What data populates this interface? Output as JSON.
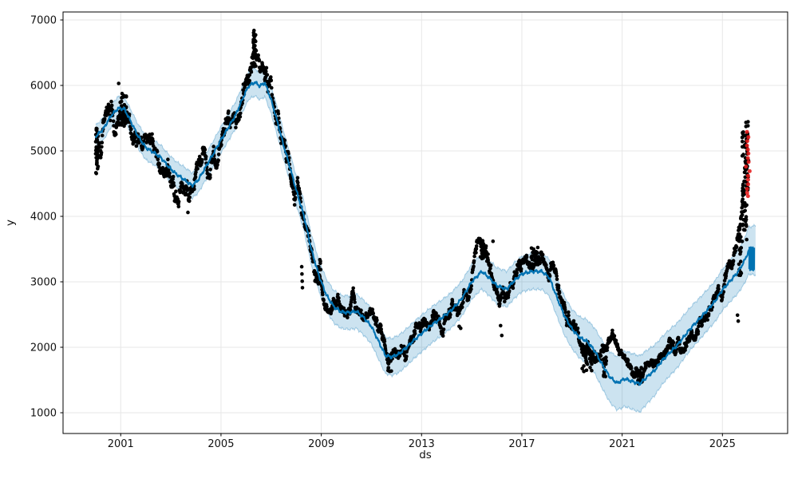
{
  "figure": {
    "background": "#ffffff",
    "description": "Time-series forecast plot (Prophet style): black actual observations, blue forecast line with light-blue uncertainty interval, red anomaly points near the end, short forecast tail beyond last observation."
  },
  "chart_data": {
    "type": "scatter",
    "subtype": "time-series forecast with uncertainty band and anomalies",
    "title": "",
    "xlabel": "ds",
    "ylabel": "y",
    "x_domain": [
      1998.7,
      2027.6
    ],
    "y_domain": [
      683,
      7122
    ],
    "x_ticks": [
      2001,
      2005,
      2009,
      2013,
      2017,
      2021,
      2025
    ],
    "y_ticks": [
      1000,
      2000,
      3000,
      4000,
      5000,
      6000,
      7000
    ],
    "grid": true,
    "legend": "none",
    "colors": {
      "actuals": "#000000",
      "forecast_line": "#0072B2",
      "uncertainty_band": "rgba(0,114,178,0.2)",
      "band_edge": "rgba(0,114,178,0.30)",
      "anomalies": "rgba(230,26,26,0.88)",
      "gridline": "#e7e7e7",
      "spine": "#000000"
    },
    "forecast": {
      "name": "yhat",
      "x": [
        2000.0,
        2000.3,
        2000.6,
        2000.9,
        2001.15,
        2001.4,
        2001.7,
        2002.0,
        2002.3,
        2002.6,
        2002.9,
        2003.2,
        2003.5,
        2003.85,
        2004.1,
        2004.4,
        2004.7,
        2005.0,
        2005.3,
        2005.6,
        2005.9,
        2006.1,
        2006.35,
        2006.55,
        2006.75,
        2007.0,
        2007.25,
        2007.5,
        2007.75,
        2008.0,
        2008.3,
        2008.6,
        2008.9,
        2009.2,
        2009.5,
        2009.8,
        2010.1,
        2010.4,
        2010.7,
        2011.0,
        2011.3,
        2011.55,
        2011.8,
        2012.1,
        2012.4,
        2012.7,
        2013.0,
        2013.4,
        2013.8,
        2014.2,
        2014.6,
        2015.0,
        2015.4,
        2015.7,
        2016.0,
        2016.4,
        2016.7,
        2017.0,
        2017.4,
        2017.8,
        2018.1,
        2018.4,
        2018.7,
        2019.0,
        2019.3,
        2019.6,
        2019.9,
        2020.2,
        2020.5,
        2020.8,
        2021.1,
        2021.4,
        2021.7,
        2022.0,
        2022.3,
        2022.6,
        2022.9,
        2023.2,
        2023.5,
        2023.8,
        2024.1,
        2024.4,
        2024.7,
        2025.0,
        2025.3,
        2025.6,
        2025.85,
        2026.06
      ],
      "y": [
        5220,
        5330,
        5530,
        5650,
        5640,
        5450,
        5220,
        5050,
        4980,
        4900,
        4760,
        4650,
        4570,
        4470,
        4560,
        4760,
        4960,
        5170,
        5360,
        5560,
        5830,
        5990,
        6050,
        5990,
        6040,
        5780,
        5440,
        5080,
        4750,
        4400,
        4020,
        3500,
        3100,
        2800,
        2620,
        2540,
        2530,
        2550,
        2450,
        2320,
        2080,
        1880,
        1850,
        1900,
        2000,
        2110,
        2210,
        2340,
        2450,
        2570,
        2740,
        3000,
        3160,
        3060,
        2940,
        2890,
        3020,
        3120,
        3160,
        3160,
        3060,
        2760,
        2480,
        2280,
        2150,
        2090,
        1950,
        1740,
        1550,
        1450,
        1520,
        1480,
        1440,
        1550,
        1650,
        1800,
        1920,
        2030,
        2180,
        2320,
        2440,
        2570,
        2700,
        2880,
        3010,
        3140,
        3300,
        3480
      ]
    },
    "uncertainty": {
      "x": [
        2000,
        2002,
        2004,
        2006,
        2008,
        2009,
        2010,
        2011,
        2012,
        2013,
        2014,
        2015,
        2016,
        2017,
        2018,
        2019,
        2020,
        2021,
        2021.7,
        2022.5,
        2023.5,
        2024.5,
        2025.5,
        2026.35
      ],
      "half_width": [
        170,
        185,
        195,
        205,
        220,
        240,
        255,
        270,
        285,
        280,
        270,
        265,
        275,
        270,
        280,
        300,
        350,
        420,
        430,
        370,
        330,
        310,
        320,
        380
      ],
      "x_end": 2026.32
    },
    "forecast_tail_blob": {
      "x_start": 2026.07,
      "x_end": 2026.27,
      "y_min": 3170,
      "y_max": 3530
    },
    "actuals": {
      "name": "y",
      "x_start": 2000.0,
      "x_end": 2026.05,
      "keypoints_x": [
        2000.0,
        2000.15,
        2000.4,
        2000.65,
        2000.9,
        2001.1,
        2001.35,
        2001.6,
        2001.85,
        2002.1,
        2002.35,
        2002.6,
        2002.85,
        2003.1,
        2003.4,
        2003.65,
        2003.9,
        2004.15,
        2004.35,
        2004.6,
        2004.85,
        2005.1,
        2005.35,
        2005.6,
        2005.85,
        2006.1,
        2006.3,
        2006.45,
        2006.65,
        2006.85,
        2007.05,
        2007.3,
        2007.55,
        2007.8,
        2008.05,
        2008.3,
        2008.55,
        2008.8,
        2009.0,
        2009.25,
        2009.5,
        2009.75,
        2010.0,
        2010.25,
        2010.5,
        2010.75,
        2011.0,
        2011.25,
        2011.5,
        2011.75,
        2012.0,
        2012.25,
        2012.5,
        2012.75,
        2013.0,
        2013.25,
        2013.5,
        2013.75,
        2014.0,
        2014.25,
        2014.5,
        2014.75,
        2015.0,
        2015.25,
        2015.45,
        2015.65,
        2015.9,
        2016.15,
        2016.4,
        2016.65,
        2016.9,
        2017.15,
        2017.4,
        2017.65,
        2017.9,
        2018.15,
        2018.4,
        2018.65,
        2018.9,
        2019.15,
        2019.4,
        2019.65,
        2019.9,
        2020.15,
        2020.4,
        2020.65,
        2020.9,
        2021.15,
        2021.4,
        2021.65,
        2021.9,
        2022.15,
        2022.4,
        2022.65,
        2022.9,
        2023.15,
        2023.4,
        2023.65,
        2023.9,
        2024.15,
        2024.4,
        2024.65,
        2024.9,
        2025.15,
        2025.4,
        2025.6,
        2025.75,
        2025.9,
        2026.05
      ],
      "keypoints_y": [
        5000,
        5150,
        5350,
        5550,
        5600,
        5650,
        5550,
        5250,
        4950,
        5050,
        4900,
        4700,
        4700,
        4550,
        4380,
        4200,
        4450,
        4850,
        5000,
        4800,
        4900,
        5200,
        5400,
        5650,
        5900,
        6250,
        6550,
        6300,
        6150,
        6050,
        5800,
        5400,
        5000,
        4600,
        4350,
        4050,
        3500,
        3200,
        2950,
        2500,
        2600,
        2600,
        2550,
        2700,
        2550,
        2400,
        2350,
        2250,
        1950,
        1750,
        1900,
        1950,
        2050,
        2100,
        2250,
        2350,
        2450,
        2400,
        2500,
        2600,
        2650,
        2750,
        3050,
        3350,
        3450,
        3250,
        2950,
        2750,
        2700,
        2950,
        3100,
        3250,
        3350,
        3300,
        3250,
        3200,
        2900,
        2600,
        2450,
        2250,
        2100,
        2000,
        1900,
        1800,
        1950,
        2050,
        1950,
        1800,
        1650,
        1550,
        1600,
        1750,
        1850,
        1950,
        2050,
        2050,
        1980,
        2150,
        2300,
        2450,
        2550,
        2700,
        2850,
        3000,
        3200,
        3450,
        3900,
        4600,
        4850
      ]
    },
    "cluster_strips": [
      {
        "x_center": 2000.05,
        "x_span": 0.1,
        "y_min": 4650,
        "y_max": 5350,
        "n": 28
      },
      {
        "x_center": 2001.1,
        "x_span": 0.25,
        "y_min": 5500,
        "y_max": 5880,
        "n": 22
      },
      {
        "x_center": 2006.33,
        "x_span": 0.12,
        "y_min": 6280,
        "y_max": 6840,
        "n": 30
      },
      {
        "x_center": 2008.9,
        "x_span": 0.15,
        "y_min": 2950,
        "y_max": 3400,
        "n": 12
      },
      {
        "x_center": 2011.7,
        "x_span": 0.2,
        "y_min": 1600,
        "y_max": 1900,
        "n": 16
      },
      {
        "x_center": 2015.42,
        "x_span": 0.15,
        "y_min": 3280,
        "y_max": 3640,
        "n": 18
      },
      {
        "x_center": 2017.5,
        "x_span": 0.3,
        "y_min": 3250,
        "y_max": 3540,
        "n": 20
      },
      {
        "x_center": 2019.65,
        "x_span": 0.5,
        "y_min": 1630,
        "y_max": 2050,
        "n": 40
      },
      {
        "x_center": 2020.3,
        "x_span": 0.15,
        "y_min": 1550,
        "y_max": 1850,
        "n": 14
      },
      {
        "x_center": 2021.7,
        "x_span": 0.25,
        "y_min": 1440,
        "y_max": 1700,
        "n": 16
      },
      {
        "x_center": 2025.7,
        "x_span": 0.12,
        "y_min": 3100,
        "y_max": 3750,
        "n": 22
      },
      {
        "x_center": 2025.88,
        "x_span": 0.2,
        "y_min": 3600,
        "y_max": 5300,
        "n": 50
      },
      {
        "x_center": 2025.98,
        "x_span": 0.1,
        "y_min": 4300,
        "y_max": 5440,
        "n": 22
      }
    ],
    "outlier_points": [
      [
        2000.92,
        6030
      ],
      [
        2003.68,
        4060
      ],
      [
        2008.22,
        3230
      ],
      [
        2008.23,
        3120
      ],
      [
        2008.24,
        3010
      ],
      [
        2008.25,
        2910
      ],
      [
        2014.5,
        2320
      ],
      [
        2014.56,
        2290
      ],
      [
        2015.85,
        3620
      ],
      [
        2016.15,
        2330
      ],
      [
        2016.2,
        2180
      ],
      [
        2025.6,
        2490
      ],
      [
        2025.63,
        2400
      ],
      [
        2026.02,
        5445
      ]
    ],
    "anomalies": {
      "x": [
        2025.97,
        2026.0,
        2026.02,
        2025.99,
        2026.03,
        2026.0,
        2026.05,
        2026.01,
        2025.98,
        2026.04,
        2026.0,
        2026.02,
        2026.05,
        2026.0,
        2026.03,
        2026.01
      ],
      "y": [
        5290,
        5210,
        5150,
        5080,
        5020,
        4960,
        4890,
        4830,
        4760,
        4690,
        4620,
        4560,
        4490,
        4420,
        4360,
        4310
      ]
    }
  }
}
